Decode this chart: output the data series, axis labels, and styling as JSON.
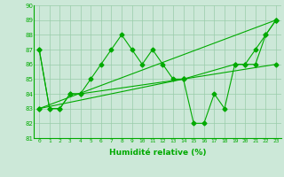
{
  "xlabel": "Humidité relative (%)",
  "xlim": [
    -0.5,
    23.5
  ],
  "ylim": [
    81,
    90
  ],
  "yticks": [
    81,
    82,
    83,
    84,
    85,
    86,
    87,
    88,
    89,
    90
  ],
  "xticks": [
    0,
    1,
    2,
    3,
    4,
    5,
    6,
    7,
    8,
    9,
    10,
    11,
    12,
    13,
    14,
    15,
    16,
    17,
    18,
    19,
    20,
    21,
    22,
    23
  ],
  "background_color": "#cce8d8",
  "grid_color": "#99ccaa",
  "line_color": "#00aa00",
  "line1_x": [
    0,
    1,
    2,
    3,
    4,
    5,
    6,
    7,
    8,
    9,
    10,
    11,
    12,
    13,
    14,
    15,
    16,
    17,
    18,
    19,
    20,
    21,
    22,
    23
  ],
  "line1_y": [
    87,
    83,
    83,
    84,
    84,
    85,
    86,
    87,
    88,
    87,
    86,
    87,
    86,
    85,
    85,
    82,
    82,
    84,
    83,
    86,
    86,
    87,
    88,
    89
  ],
  "line2_x": [
    0,
    1,
    2,
    3,
    4,
    14,
    19,
    20,
    21,
    22,
    23
  ],
  "line2_y": [
    87,
    83,
    83,
    84,
    84,
    85,
    86,
    86,
    86,
    88,
    89
  ],
  "line3_x": [
    0,
    23
  ],
  "line3_y": [
    83,
    89
  ],
  "line4_x": [
    0,
    14,
    23
  ],
  "line4_y": [
    83,
    85,
    86
  ]
}
